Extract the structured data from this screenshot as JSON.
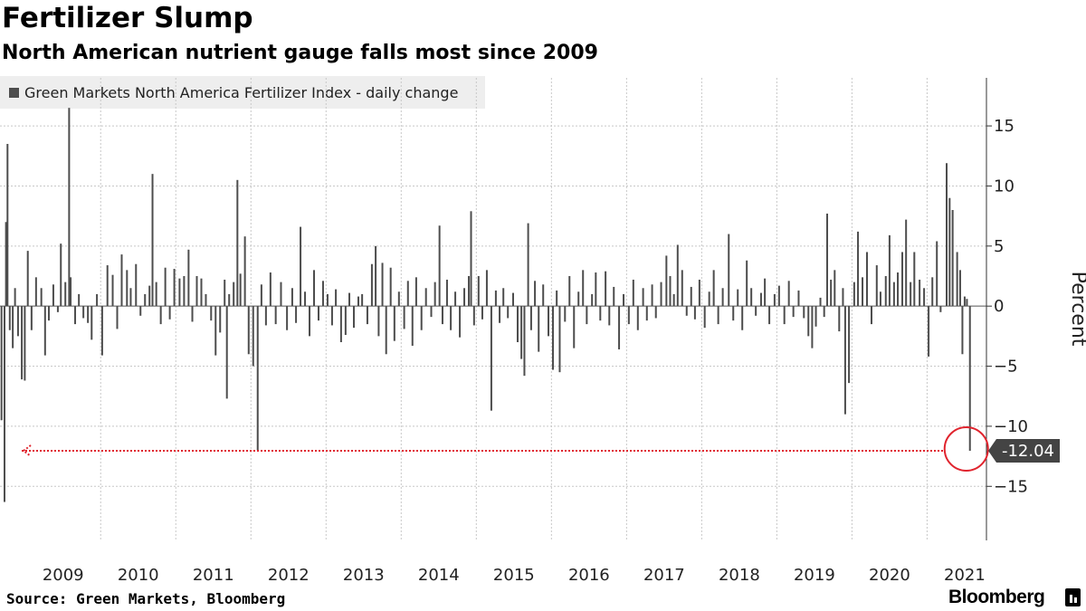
{
  "title": "Fertilizer Slump",
  "subtitle": "North American nutrient gauge falls most since 2009",
  "footer": {
    "source": "Source: Green Markets, Bloomberg",
    "brand": "Bloomberg"
  },
  "colors": {
    "bar": "#4d4d4d",
    "highlight": "#e0242e",
    "grid": "#c8c8c8",
    "legend_bg": "#eeeeee"
  },
  "chart_data": {
    "type": "bar",
    "legend": [
      "Green Markets North America Fertilizer Index - daily change"
    ],
    "ylabel": "Percent",
    "ylim": [
      -19.5,
      19
    ],
    "y_ticks": [
      15,
      10,
      5,
      0,
      -5,
      -10,
      -15
    ],
    "x_tick_labels": [
      "2009",
      "2010",
      "2011",
      "2012",
      "2013",
      "2014",
      "2015",
      "2016",
      "2017",
      "2018",
      "2019",
      "2020",
      "2021"
    ],
    "x_range": [
      2008.66,
      2021.79
    ],
    "grid": true,
    "series": [
      {
        "name": "Green Markets North America Fertilizer Index - daily change",
        "points": [
          [
            2008.68,
            -9.5
          ],
          [
            2008.72,
            -16.3
          ],
          [
            2008.74,
            7.0
          ],
          [
            2008.76,
            13.5
          ],
          [
            2008.79,
            -2.0
          ],
          [
            2008.83,
            -3.5
          ],
          [
            2008.86,
            1.5
          ],
          [
            2008.9,
            -2.5
          ],
          [
            2008.95,
            -6.1
          ],
          [
            2008.99,
            -6.2
          ],
          [
            2009.03,
            4.6
          ],
          [
            2009.08,
            -2.0
          ],
          [
            2009.14,
            2.4
          ],
          [
            2009.21,
            1.5
          ],
          [
            2009.26,
            -4.1
          ],
          [
            2009.31,
            -1.2
          ],
          [
            2009.37,
            1.8
          ],
          [
            2009.43,
            -0.5
          ],
          [
            2009.47,
            5.2
          ],
          [
            2009.53,
            2.0
          ],
          [
            2009.58,
            16.5
          ],
          [
            2009.6,
            2.4
          ],
          [
            2009.66,
            -1.5
          ],
          [
            2009.71,
            1.0
          ],
          [
            2009.77,
            -1.0
          ],
          [
            2009.83,
            -1.4
          ],
          [
            2009.88,
            -2.8
          ],
          [
            2009.95,
            1.0
          ],
          [
            2010.02,
            -4.1
          ],
          [
            2010.09,
            3.4
          ],
          [
            2010.16,
            2.6
          ],
          [
            2010.22,
            -1.9
          ],
          [
            2010.28,
            4.3
          ],
          [
            2010.35,
            3.0
          ],
          [
            2010.4,
            1.5
          ],
          [
            2010.47,
            3.5
          ],
          [
            2010.53,
            -0.8
          ],
          [
            2010.59,
            1.0
          ],
          [
            2010.65,
            1.7
          ],
          [
            2010.69,
            11.0
          ],
          [
            2010.74,
            2.0
          ],
          [
            2010.8,
            -1.5
          ],
          [
            2010.86,
            3.2
          ],
          [
            2010.92,
            -1.1
          ],
          [
            2010.98,
            3.1
          ],
          [
            2011.05,
            2.3
          ],
          [
            2011.11,
            2.5
          ],
          [
            2011.17,
            4.7
          ],
          [
            2011.22,
            -1.3
          ],
          [
            2011.28,
            2.5
          ],
          [
            2011.34,
            2.3
          ],
          [
            2011.4,
            1.0
          ],
          [
            2011.47,
            -1.2
          ],
          [
            2011.53,
            -4.1
          ],
          [
            2011.59,
            -2.2
          ],
          [
            2011.65,
            2.2
          ],
          [
            2011.68,
            -7.7
          ],
          [
            2011.71,
            1.0
          ],
          [
            2011.77,
            2.0
          ],
          [
            2011.82,
            10.5
          ],
          [
            2011.86,
            2.7
          ],
          [
            2011.92,
            5.8
          ],
          [
            2011.97,
            -4.0
          ],
          [
            2012.03,
            -5.0
          ],
          [
            2012.09,
            -12.0
          ],
          [
            2012.14,
            1.8
          ],
          [
            2012.2,
            -1.6
          ],
          [
            2012.26,
            2.8
          ],
          [
            2012.33,
            -1.5
          ],
          [
            2012.4,
            2.0
          ],
          [
            2012.48,
            -2.0
          ],
          [
            2012.55,
            1.5
          ],
          [
            2012.6,
            -1.4
          ],
          [
            2012.66,
            6.6
          ],
          [
            2012.72,
            1.2
          ],
          [
            2012.78,
            -2.5
          ],
          [
            2012.84,
            3.0
          ],
          [
            2012.9,
            -1.2
          ],
          [
            2012.96,
            2.1
          ],
          [
            2013.02,
            1.0
          ],
          [
            2013.08,
            -1.6
          ],
          [
            2013.13,
            1.4
          ],
          [
            2013.2,
            -3.0
          ],
          [
            2013.26,
            -2.4
          ],
          [
            2013.31,
            1.1
          ],
          [
            2013.37,
            -1.8
          ],
          [
            2013.43,
            0.8
          ],
          [
            2013.48,
            1.0
          ],
          [
            2013.55,
            -1.5
          ],
          [
            2013.61,
            3.5
          ],
          [
            2013.66,
            5.0
          ],
          [
            2013.7,
            -2.5
          ],
          [
            2013.75,
            3.6
          ],
          [
            2013.8,
            -4.0
          ],
          [
            2013.86,
            3.2
          ],
          [
            2013.91,
            -2.9
          ],
          [
            2013.97,
            1.2
          ],
          [
            2014.04,
            -1.9
          ],
          [
            2014.09,
            2.1
          ],
          [
            2014.15,
            -3.3
          ],
          [
            2014.2,
            2.4
          ],
          [
            2014.27,
            -2.0
          ],
          [
            2014.33,
            1.5
          ],
          [
            2014.4,
            -0.9
          ],
          [
            2014.45,
            2.0
          ],
          [
            2014.51,
            6.7
          ],
          [
            2014.55,
            -1.5
          ],
          [
            2014.61,
            2.2
          ],
          [
            2014.66,
            -2.0
          ],
          [
            2014.72,
            1.2
          ],
          [
            2014.78,
            -2.6
          ],
          [
            2014.84,
            1.5
          ],
          [
            2014.9,
            2.5
          ],
          [
            2014.93,
            7.9
          ],
          [
            2014.97,
            -1.6
          ],
          [
            2015.03,
            2.5
          ],
          [
            2015.08,
            -1.1
          ],
          [
            2015.14,
            3.0
          ],
          [
            2015.2,
            -8.7
          ],
          [
            2015.26,
            1.3
          ],
          [
            2015.31,
            -1.4
          ],
          [
            2015.36,
            1.5
          ],
          [
            2015.42,
            -1.0
          ],
          [
            2015.49,
            1.1
          ],
          [
            2015.55,
            -3.0
          ],
          [
            2015.6,
            -4.4
          ],
          [
            2015.64,
            -5.8
          ],
          [
            2015.69,
            6.9
          ],
          [
            2015.73,
            -2.0
          ],
          [
            2015.78,
            2.1
          ],
          [
            2015.83,
            -3.8
          ],
          [
            2015.89,
            1.8
          ],
          [
            2015.96,
            -2.5
          ],
          [
            2016.02,
            -5.3
          ],
          [
            2016.07,
            1.3
          ],
          [
            2016.11,
            -5.5
          ],
          [
            2016.18,
            -1.3
          ],
          [
            2016.24,
            2.5
          ],
          [
            2016.3,
            -3.5
          ],
          [
            2016.36,
            1.2
          ],
          [
            2016.42,
            3.0
          ],
          [
            2016.47,
            -1.5
          ],
          [
            2016.54,
            1.0
          ],
          [
            2016.59,
            2.8
          ],
          [
            2016.65,
            -1.2
          ],
          [
            2016.72,
            2.9
          ],
          [
            2016.77,
            -1.6
          ],
          [
            2016.83,
            1.6
          ],
          [
            2016.9,
            -3.6
          ],
          [
            2016.96,
            1.0
          ],
          [
            2017.03,
            -1.5
          ],
          [
            2017.09,
            2.2
          ],
          [
            2017.15,
            -2.0
          ],
          [
            2017.22,
            1.5
          ],
          [
            2017.27,
            -1.2
          ],
          [
            2017.34,
            1.8
          ],
          [
            2017.39,
            -1.0
          ],
          [
            2017.46,
            2.0
          ],
          [
            2017.53,
            4.2
          ],
          [
            2017.58,
            2.5
          ],
          [
            2017.63,
            1.0
          ],
          [
            2017.68,
            5.1
          ],
          [
            2017.74,
            3.0
          ],
          [
            2017.8,
            -0.8
          ],
          [
            2017.86,
            1.6
          ],
          [
            2017.91,
            -1.1
          ],
          [
            2017.97,
            2.2
          ],
          [
            2018.04,
            -1.8
          ],
          [
            2018.1,
            1.2
          ],
          [
            2018.16,
            3.0
          ],
          [
            2018.22,
            -1.5
          ],
          [
            2018.28,
            1.5
          ],
          [
            2018.36,
            6.0
          ],
          [
            2018.42,
            -1.2
          ],
          [
            2018.48,
            1.4
          ],
          [
            2018.54,
            -2.0
          ],
          [
            2018.6,
            3.8
          ],
          [
            2018.66,
            1.5
          ],
          [
            2018.72,
            -0.8
          ],
          [
            2018.79,
            1.1
          ],
          [
            2018.84,
            2.3
          ],
          [
            2018.9,
            -1.5
          ],
          [
            2018.97,
            1.0
          ],
          [
            2019.03,
            1.7
          ],
          [
            2019.1,
            -1.5
          ],
          [
            2019.16,
            2.1
          ],
          [
            2019.22,
            -0.9
          ],
          [
            2019.29,
            1.3
          ],
          [
            2019.36,
            -1.0
          ],
          [
            2019.42,
            -2.5
          ],
          [
            2019.47,
            -3.5
          ],
          [
            2019.52,
            -1.7
          ],
          [
            2019.58,
            0.7
          ],
          [
            2019.63,
            -0.9
          ],
          [
            2019.67,
            7.7
          ],
          [
            2019.72,
            2.2
          ],
          [
            2019.77,
            3.0
          ],
          [
            2019.83,
            -2.1
          ],
          [
            2019.88,
            1.5
          ],
          [
            2019.91,
            -9.0
          ],
          [
            2019.96,
            -6.4
          ],
          [
            2020.03,
            2.0
          ],
          [
            2020.08,
            6.2
          ],
          [
            2020.14,
            2.4
          ],
          [
            2020.2,
            4.5
          ],
          [
            2020.26,
            -1.5
          ],
          [
            2020.33,
            3.4
          ],
          [
            2020.38,
            1.2
          ],
          [
            2020.45,
            2.5
          ],
          [
            2020.5,
            5.9
          ],
          [
            2020.56,
            2.0
          ],
          [
            2020.61,
            2.8
          ],
          [
            2020.67,
            4.5
          ],
          [
            2020.72,
            7.2
          ],
          [
            2020.78,
            2.0
          ],
          [
            2020.83,
            4.5
          ],
          [
            2020.9,
            2.2
          ],
          [
            2020.96,
            1.5
          ],
          [
            2021.02,
            -4.2
          ],
          [
            2021.07,
            2.4
          ],
          [
            2021.13,
            5.4
          ],
          [
            2021.18,
            -0.5
          ],
          [
            2021.26,
            11.9
          ],
          [
            2021.3,
            9.0
          ],
          [
            2021.34,
            8.0
          ],
          [
            2021.4,
            4.5
          ],
          [
            2021.44,
            3.0
          ],
          [
            2021.47,
            -4.0
          ],
          [
            2021.5,
            0.8
          ],
          [
            2021.53,
            0.6
          ],
          [
            2021.57,
            -12.04
          ]
        ]
      }
    ],
    "callout": {
      "x": 2021.57,
      "value": -12.04,
      "label": "-12.04"
    }
  }
}
